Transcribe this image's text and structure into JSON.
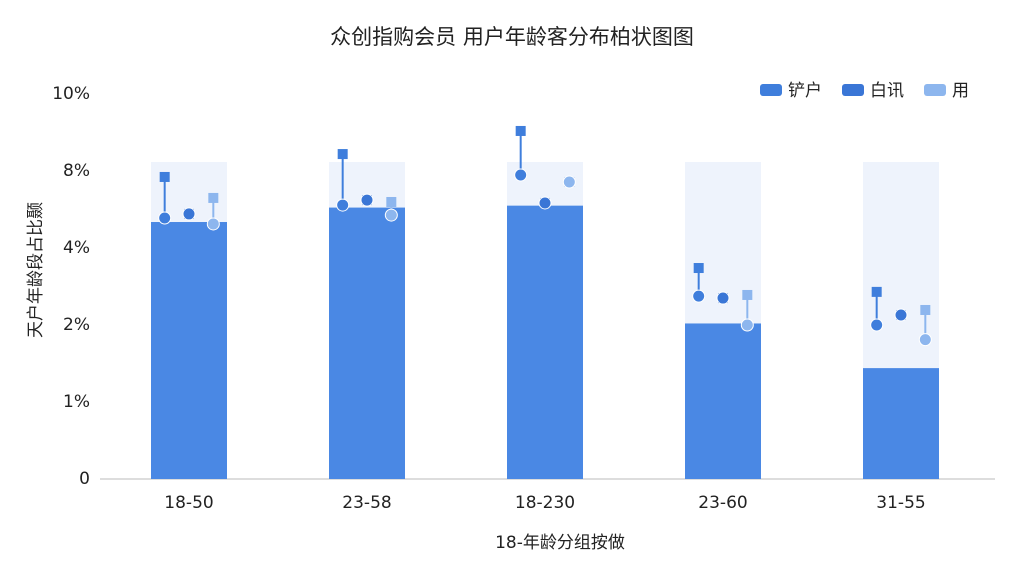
{
  "chart_data": {
    "type": "bar",
    "title": "众创指购会员 用户年龄客分布柏状图图",
    "x_label": "18-年龄分组按做",
    "y_label": "天户年龄段占比颞",
    "categories": [
      "18-50",
      "23-58",
      "18-230",
      "23-60",
      "31-55"
    ],
    "values": [
      5.35,
      6.1,
      6.2,
      2.04,
      1.44
    ],
    "color": "#4a88e4",
    "series": [
      {
        "name": "铲户",
        "color": "#3f7edc",
        "values": [
          5.56,
          6.23,
          7.79,
          2.75,
          2.0
        ],
        "errors": [
          2.13,
          2.21,
          1.25,
          0.73,
          0.86
        ]
      },
      {
        "name": "白讯",
        "color": "#3a76d6",
        "values": [
          5.77,
          6.49,
          6.34,
          2.7,
          2.26
        ],
        "errors": [
          0,
          0,
          0,
          0,
          0
        ]
      },
      {
        "name": "用",
        "color": "#8db6ee",
        "values": [
          5.25,
          5.71,
          7.43,
          2.0,
          1.81
        ],
        "errors": [
          1.35,
          0.68,
          0,
          0.78,
          0.58
        ]
      }
    ],
    "ylim": [
      0,
      10
    ],
    "yticks": [
      0,
      {
        "value": 1,
        "label": "1%"
      },
      {
        "value": 2,
        "label": "2%"
      },
      {
        "value": 4,
        "label": "4%"
      },
      {
        "value": 8,
        "label": "8%"
      },
      {
        "value": 10,
        "label": "10%"
      }
    ],
    "grid": false,
    "legend": "top-right"
  }
}
